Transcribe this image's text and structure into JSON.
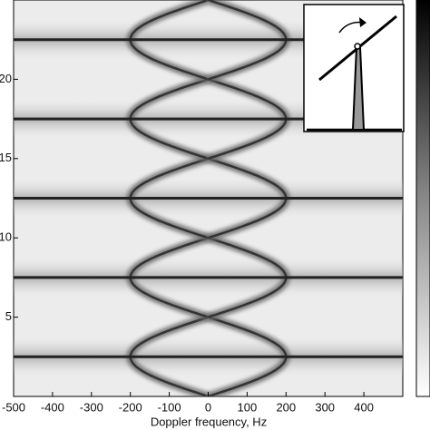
{
  "chart_data": {
    "type": "spectrogram",
    "xlabel": "Doppler frequency, Hz",
    "xlim": [
      -500,
      500
    ],
    "xticks": [
      -500,
      -400,
      -300,
      -200,
      -100,
      0,
      100,
      200,
      300,
      400
    ],
    "ylim": [
      0,
      25
    ],
    "yticks": [
      5,
      10,
      15,
      20
    ],
    "flash_times": [
      2.5,
      7.5,
      12.5,
      17.5,
      22.5
    ],
    "period": 5,
    "max_doppler": 200
  }
}
